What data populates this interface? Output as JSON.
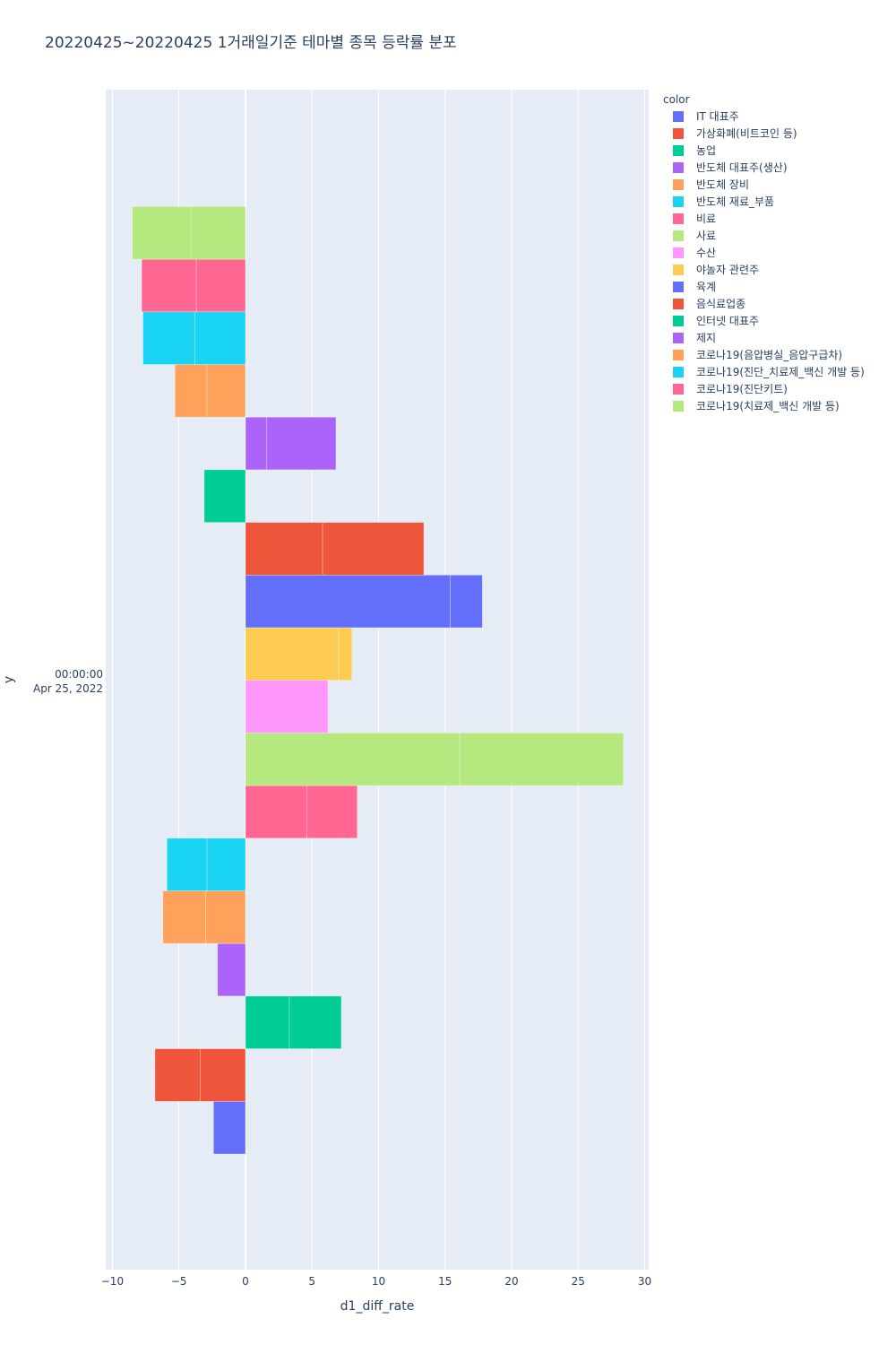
{
  "chart_data": {
    "type": "bar",
    "orientation": "horizontal",
    "barmode": "group",
    "title": "20220425~20220425 1거래일기준 테마별 종목 등락률 분포",
    "xlabel": "d1_diff_rate",
    "ylabel": "y",
    "y_tick_label": [
      "00:00:00",
      "Apr 25, 2022"
    ],
    "xlim": [
      -10.5,
      30.3
    ],
    "xticks": [
      -10,
      -5,
      0,
      5,
      10,
      15,
      20,
      25,
      30
    ],
    "legend_title": "color",
    "legend_position": "right",
    "grid": true,
    "series": [
      {
        "name": "IT 대표주",
        "color": "#636efa",
        "segments": [
          -2.4
        ]
      },
      {
        "name": "가상화폐(비트코인 등)",
        "color": "#EF553B",
        "segments": [
          -3.4,
          -3.4
        ]
      },
      {
        "name": "농업",
        "color": "#00cc96",
        "segments": [
          3.3,
          3.9
        ]
      },
      {
        "name": "반도체 대표주(생산)",
        "color": "#ab63fa",
        "segments": [
          -2.1
        ]
      },
      {
        "name": "반도체 장비",
        "color": "#FFA15A",
        "segments": [
          -3.0,
          -3.2
        ]
      },
      {
        "name": "반도체 재료_부품",
        "color": "#19d3f3",
        "segments": [
          -2.9,
          -3.0
        ]
      },
      {
        "name": "비료",
        "color": "#FF6692",
        "segments": [
          4.6,
          3.8
        ]
      },
      {
        "name": "사료",
        "color": "#B6E880",
        "segments": [
          16.1,
          12.3
        ]
      },
      {
        "name": "수산",
        "color": "#FF97FF",
        "segments": [
          6.2
        ]
      },
      {
        "name": "야놀자 관련주",
        "color": "#FECB52",
        "segments": [
          7.0,
          1.0
        ]
      },
      {
        "name": "육계",
        "color": "#636efa",
        "segments": [
          15.4,
          2.4
        ]
      },
      {
        "name": "음식료업종",
        "color": "#EF553B",
        "segments": [
          5.8,
          7.6
        ]
      },
      {
        "name": "인터넷 대표주",
        "color": "#00cc96",
        "segments": [
          -3.1
        ]
      },
      {
        "name": "제지",
        "color": "#ab63fa",
        "segments": [
          1.6,
          5.2
        ]
      },
      {
        "name": "코로나19(음압병실_음압구급차)",
        "color": "#FFA15A",
        "segments": [
          -2.9,
          -2.4
        ]
      },
      {
        "name": "코로나19(진단_치료제_백신 개발 등)",
        "color": "#19d3f3",
        "segments": [
          -3.8,
          -3.9
        ]
      },
      {
        "name": "코로나19(진단키트)",
        "color": "#FF6692",
        "segments": [
          -3.7,
          -4.1
        ]
      },
      {
        "name": "코로나19(치료제_백신 개발 등)",
        "color": "#B6E880",
        "segments": [
          -4.1,
          -4.4
        ]
      }
    ]
  }
}
